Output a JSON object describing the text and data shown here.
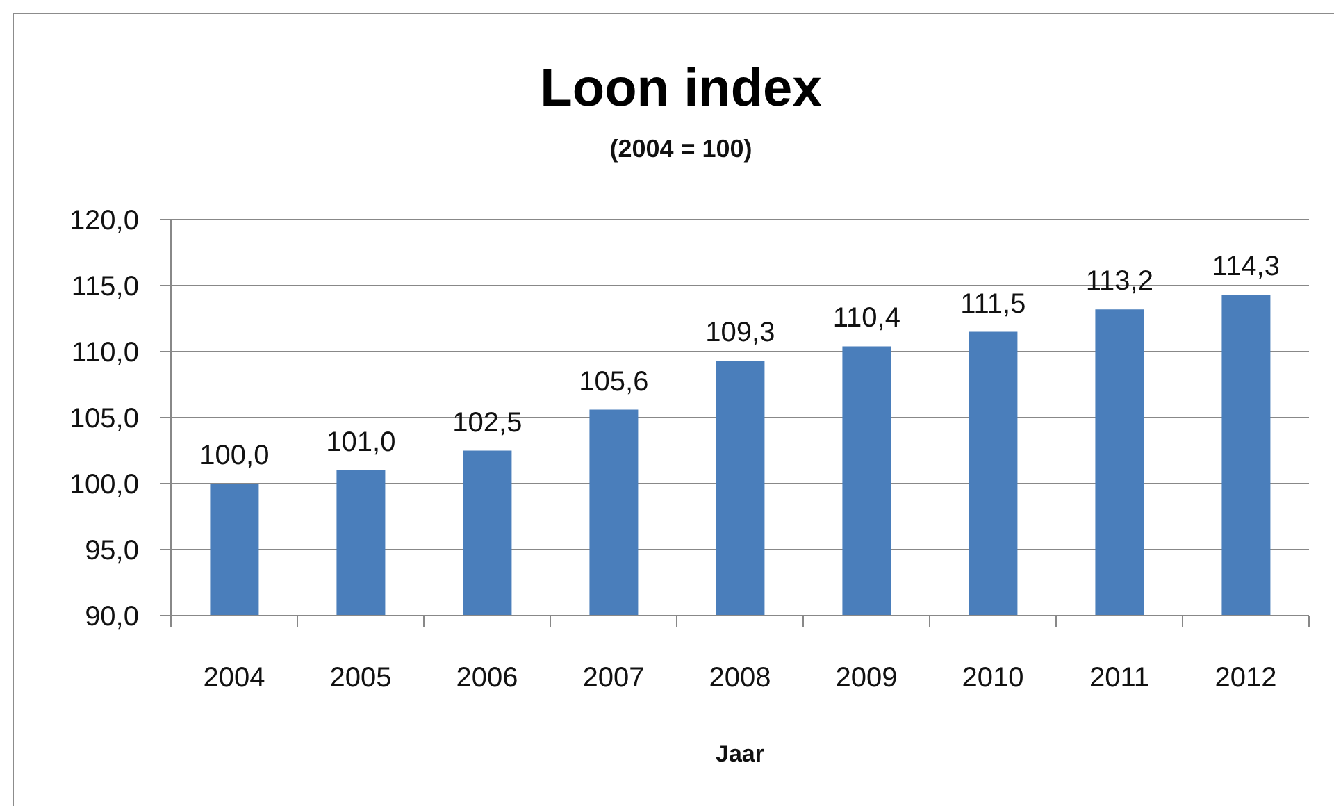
{
  "chart_data": {
    "type": "bar",
    "title": "Loon index",
    "subtitle": "(2004 = 100)",
    "xlabel": "Jaar",
    "categories": [
      "2004",
      "2005",
      "2006",
      "2007",
      "2008",
      "2009",
      "2010",
      "2011",
      "2012"
    ],
    "values": [
      100.0,
      101.0,
      102.5,
      105.6,
      109.3,
      110.4,
      111.5,
      113.2,
      114.3
    ],
    "value_labels": [
      "100,0",
      "101,0",
      "102,5",
      "105,6",
      "109,3",
      "110,4",
      "111,5",
      "113,2",
      "114,3"
    ],
    "color": "#4a7ebb",
    "ylim": [
      90,
      120
    ],
    "yticks": [
      {
        "value": 90,
        "label": "90,0"
      },
      {
        "value": 95,
        "label": "95,0"
      },
      {
        "value": 100,
        "label": "100,0"
      },
      {
        "value": 105,
        "label": "105,0"
      },
      {
        "value": 110,
        "label": "110,0"
      },
      {
        "value": 115,
        "label": "115,0"
      },
      {
        "value": 120,
        "label": "120,0"
      }
    ],
    "grid": "y"
  }
}
